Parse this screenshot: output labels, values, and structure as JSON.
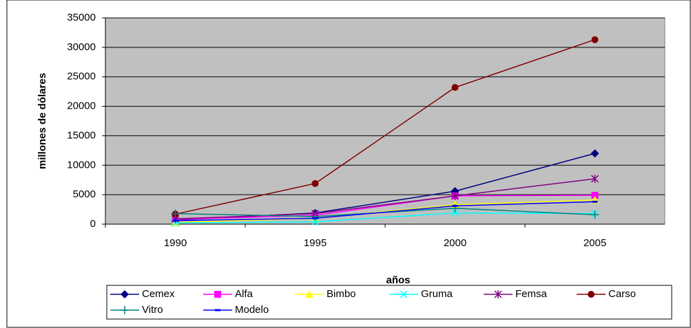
{
  "chart_data": {
    "type": "line",
    "x_label": "años",
    "y_label": "millones de dólares",
    "categories": [
      "1990",
      "1995",
      "2000",
      "2005"
    ],
    "series": [
      {
        "name": "Cemex",
        "color": "#000080",
        "marker": "diamond",
        "values": [
          700,
          1900,
          5600,
          12000
        ]
      },
      {
        "name": "Alfa",
        "color": "#ff00ff",
        "marker": "square",
        "values": [
          800,
          1500,
          4800,
          4900
        ]
      },
      {
        "name": "Bimbo",
        "color": "#ffff00",
        "marker": "triangle",
        "values": [
          300,
          1000,
          3300,
          4100
        ]
      },
      {
        "name": "Gruma",
        "color": "#00ffff",
        "marker": "x",
        "values": [
          200,
          400,
          1900,
          1800
        ]
      },
      {
        "name": "Femsa",
        "color": "#800080",
        "marker": "asterisk",
        "values": [
          900,
          1800,
          4800,
          7700
        ]
      },
      {
        "name": "Carso",
        "color": "#800000",
        "marker": "circle",
        "values": [
          1700,
          6900,
          23200,
          31300
        ]
      },
      {
        "name": "Vitro",
        "color": "#008080",
        "marker": "plus",
        "values": [
          1800,
          1300,
          2700,
          1600
        ]
      },
      {
        "name": "Modelo",
        "color": "#0000ff",
        "marker": "dash",
        "values": [
          600,
          1000,
          3100,
          3800
        ]
      }
    ],
    "ylim": [
      0,
      35000
    ],
    "yticks": [
      0,
      5000,
      10000,
      15000,
      20000,
      25000,
      30000,
      35000
    ],
    "grid": true,
    "plot_background": "#c0c0c0"
  }
}
